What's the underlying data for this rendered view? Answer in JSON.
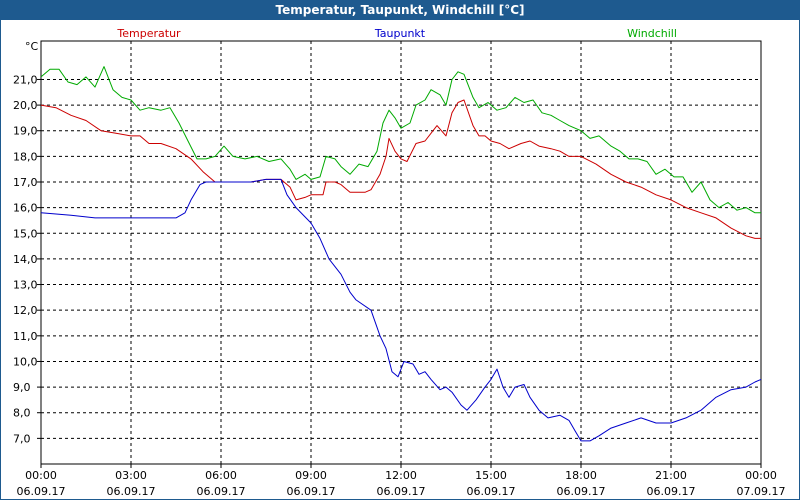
{
  "window": {
    "title": "Temperatur, Taupunkt, Windchill [°C]"
  },
  "colors": {
    "titlebar": "#1e5a8f",
    "grid": "#000000",
    "background": "#ffffff"
  },
  "chart_data": {
    "type": "line",
    "title": "Temperatur, Taupunkt, Windchill [°C]",
    "ylabel": "°C",
    "ylim": [
      6.0,
      22.5
    ],
    "yticks": [
      7.0,
      8.0,
      9.0,
      10.0,
      11.0,
      12.0,
      13.0,
      14.0,
      15.0,
      16.0,
      17.0,
      18.0,
      19.0,
      20.0,
      21.0
    ],
    "ytick_labels": [
      "7,0",
      "8,0",
      "9,0",
      "10,0",
      "11,0",
      "12,0",
      "13,0",
      "14,0",
      "15,0",
      "16,0",
      "17,0",
      "18,0",
      "19,0",
      "20,0",
      "21,0"
    ],
    "xlim": [
      0,
      24
    ],
    "xticks": [
      0,
      3,
      6,
      9,
      12,
      15,
      18,
      21,
      24
    ],
    "xtick_times": [
      "00:00",
      "03:00",
      "06:00",
      "09:00",
      "12:00",
      "15:00",
      "18:00",
      "21:00",
      "00:00"
    ],
    "xtick_dates": [
      "06.09.17",
      "06.09.17",
      "06.09.17",
      "06.09.17",
      "06.09.17",
      "06.09.17",
      "06.09.17",
      "06.09.17",
      "07.09.17"
    ],
    "grid": true,
    "series": [
      {
        "name": "Temperatur",
        "color": "#cc0000",
        "points": [
          [
            0,
            20.0
          ],
          [
            0.5,
            19.9
          ],
          [
            1.0,
            19.6
          ],
          [
            1.5,
            19.4
          ],
          [
            2.0,
            19.0
          ],
          [
            2.5,
            18.9
          ],
          [
            3.0,
            18.8
          ],
          [
            3.3,
            18.8
          ],
          [
            3.6,
            18.5
          ],
          [
            4.0,
            18.5
          ],
          [
            4.5,
            18.3
          ],
          [
            5.0,
            17.9
          ],
          [
            5.4,
            17.4
          ],
          [
            5.8,
            17.0
          ],
          [
            6.0,
            17.0
          ],
          [
            6.5,
            17.0
          ],
          [
            7.0,
            17.0
          ],
          [
            7.5,
            17.1
          ],
          [
            8.0,
            17.1
          ],
          [
            8.3,
            16.8
          ],
          [
            8.5,
            16.3
          ],
          [
            8.8,
            16.4
          ],
          [
            9.0,
            16.5
          ],
          [
            9.4,
            16.5
          ],
          [
            9.5,
            17.0
          ],
          [
            9.8,
            17.0
          ],
          [
            10.0,
            16.9
          ],
          [
            10.3,
            16.6
          ],
          [
            10.8,
            16.6
          ],
          [
            11.0,
            16.7
          ],
          [
            11.3,
            17.3
          ],
          [
            11.5,
            18.0
          ],
          [
            11.6,
            18.7
          ],
          [
            11.8,
            18.2
          ],
          [
            12.0,
            17.9
          ],
          [
            12.2,
            17.8
          ],
          [
            12.5,
            18.5
          ],
          [
            12.8,
            18.6
          ],
          [
            13.0,
            18.9
          ],
          [
            13.2,
            19.2
          ],
          [
            13.5,
            18.8
          ],
          [
            13.7,
            19.7
          ],
          [
            13.9,
            20.1
          ],
          [
            14.1,
            20.2
          ],
          [
            14.4,
            19.2
          ],
          [
            14.6,
            18.8
          ],
          [
            14.8,
            18.8
          ],
          [
            15.0,
            18.6
          ],
          [
            15.3,
            18.5
          ],
          [
            15.6,
            18.3
          ],
          [
            16.0,
            18.5
          ],
          [
            16.3,
            18.6
          ],
          [
            16.6,
            18.4
          ],
          [
            17.0,
            18.3
          ],
          [
            17.3,
            18.2
          ],
          [
            17.6,
            18.0
          ],
          [
            18.0,
            18.0
          ],
          [
            18.5,
            17.7
          ],
          [
            19.0,
            17.3
          ],
          [
            19.5,
            17.0
          ],
          [
            20.0,
            16.8
          ],
          [
            20.5,
            16.5
          ],
          [
            21.0,
            16.3
          ],
          [
            21.5,
            16.0
          ],
          [
            22.0,
            15.8
          ],
          [
            22.5,
            15.6
          ],
          [
            23.0,
            15.2
          ],
          [
            23.5,
            14.9
          ],
          [
            23.8,
            14.8
          ],
          [
            24.0,
            14.8
          ]
        ]
      },
      {
        "name": "Taupunkt",
        "color": "#0000cc",
        "points": [
          [
            0,
            15.8
          ],
          [
            1.0,
            15.7
          ],
          [
            1.8,
            15.6
          ],
          [
            2.5,
            15.6
          ],
          [
            3.0,
            15.6
          ],
          [
            4.0,
            15.6
          ],
          [
            4.5,
            15.6
          ],
          [
            4.8,
            15.8
          ],
          [
            5.0,
            16.3
          ],
          [
            5.3,
            16.9
          ],
          [
            5.5,
            17.0
          ],
          [
            6.0,
            17.0
          ],
          [
            7.0,
            17.0
          ],
          [
            7.5,
            17.1
          ],
          [
            8.0,
            17.1
          ],
          [
            8.2,
            16.5
          ],
          [
            8.5,
            16.0
          ],
          [
            9.0,
            15.4
          ],
          [
            9.3,
            14.8
          ],
          [
            9.6,
            14.0
          ],
          [
            10.0,
            13.4
          ],
          [
            10.3,
            12.7
          ],
          [
            10.5,
            12.4
          ],
          [
            11.0,
            12.0
          ],
          [
            11.3,
            11.0
          ],
          [
            11.5,
            10.5
          ],
          [
            11.7,
            9.6
          ],
          [
            11.9,
            9.4
          ],
          [
            12.1,
            10.0
          ],
          [
            12.4,
            9.9
          ],
          [
            12.6,
            9.5
          ],
          [
            12.8,
            9.6
          ],
          [
            13.0,
            9.3
          ],
          [
            13.3,
            8.9
          ],
          [
            13.5,
            9.0
          ],
          [
            13.7,
            8.8
          ],
          [
            14.0,
            8.3
          ],
          [
            14.2,
            8.1
          ],
          [
            14.5,
            8.5
          ],
          [
            14.8,
            9.0
          ],
          [
            15.0,
            9.3
          ],
          [
            15.2,
            9.7
          ],
          [
            15.4,
            9.0
          ],
          [
            15.6,
            8.6
          ],
          [
            15.8,
            9.0
          ],
          [
            16.1,
            9.1
          ],
          [
            16.3,
            8.6
          ],
          [
            16.6,
            8.1
          ],
          [
            16.9,
            7.8
          ],
          [
            17.3,
            7.9
          ],
          [
            17.6,
            7.7
          ],
          [
            17.8,
            7.3
          ],
          [
            18.0,
            6.9
          ],
          [
            18.3,
            6.9
          ],
          [
            18.6,
            7.1
          ],
          [
            19.0,
            7.4
          ],
          [
            19.5,
            7.6
          ],
          [
            20.0,
            7.8
          ],
          [
            20.5,
            7.6
          ],
          [
            21.0,
            7.6
          ],
          [
            21.5,
            7.8
          ],
          [
            22.0,
            8.1
          ],
          [
            22.5,
            8.6
          ],
          [
            23.0,
            8.9
          ],
          [
            23.5,
            9.0
          ],
          [
            23.8,
            9.2
          ],
          [
            24.0,
            9.3
          ]
        ]
      },
      {
        "name": "Windchill",
        "color": "#00aa00",
        "points": [
          [
            0,
            21.1
          ],
          [
            0.3,
            21.4
          ],
          [
            0.6,
            21.4
          ],
          [
            0.9,
            20.9
          ],
          [
            1.2,
            20.8
          ],
          [
            1.5,
            21.1
          ],
          [
            1.8,
            20.7
          ],
          [
            2.1,
            21.5
          ],
          [
            2.4,
            20.6
          ],
          [
            2.7,
            20.3
          ],
          [
            3.0,
            20.2
          ],
          [
            3.3,
            19.8
          ],
          [
            3.6,
            19.9
          ],
          [
            4.0,
            19.8
          ],
          [
            4.3,
            19.9
          ],
          [
            4.6,
            19.3
          ],
          [
            4.9,
            18.6
          ],
          [
            5.2,
            17.9
          ],
          [
            5.5,
            17.9
          ],
          [
            5.8,
            18.0
          ],
          [
            6.1,
            18.4
          ],
          [
            6.4,
            18.0
          ],
          [
            6.8,
            17.9
          ],
          [
            7.2,
            18.0
          ],
          [
            7.6,
            17.8
          ],
          [
            8.0,
            17.9
          ],
          [
            8.3,
            17.5
          ],
          [
            8.5,
            17.1
          ],
          [
            8.8,
            17.3
          ],
          [
            9.0,
            17.1
          ],
          [
            9.3,
            17.2
          ],
          [
            9.5,
            18.0
          ],
          [
            9.8,
            17.9
          ],
          [
            10.0,
            17.6
          ],
          [
            10.3,
            17.3
          ],
          [
            10.6,
            17.7
          ],
          [
            10.9,
            17.6
          ],
          [
            11.2,
            18.2
          ],
          [
            11.4,
            19.3
          ],
          [
            11.6,
            19.8
          ],
          [
            11.8,
            19.5
          ],
          [
            12.0,
            19.1
          ],
          [
            12.3,
            19.3
          ],
          [
            12.5,
            20.0
          ],
          [
            12.8,
            20.2
          ],
          [
            13.0,
            20.6
          ],
          [
            13.3,
            20.4
          ],
          [
            13.5,
            20.0
          ],
          [
            13.7,
            21.0
          ],
          [
            13.9,
            21.3
          ],
          [
            14.1,
            21.2
          ],
          [
            14.4,
            20.3
          ],
          [
            14.6,
            19.9
          ],
          [
            14.9,
            20.1
          ],
          [
            15.2,
            19.8
          ],
          [
            15.5,
            19.9
          ],
          [
            15.8,
            20.3
          ],
          [
            16.1,
            20.1
          ],
          [
            16.4,
            20.2
          ],
          [
            16.7,
            19.7
          ],
          [
            17.0,
            19.6
          ],
          [
            17.3,
            19.4
          ],
          [
            17.6,
            19.2
          ],
          [
            18.0,
            19.0
          ],
          [
            18.3,
            18.7
          ],
          [
            18.6,
            18.8
          ],
          [
            19.0,
            18.4
          ],
          [
            19.3,
            18.2
          ],
          [
            19.6,
            17.9
          ],
          [
            19.9,
            17.9
          ],
          [
            20.2,
            17.8
          ],
          [
            20.5,
            17.3
          ],
          [
            20.8,
            17.5
          ],
          [
            21.1,
            17.2
          ],
          [
            21.4,
            17.2
          ],
          [
            21.7,
            16.6
          ],
          [
            22.0,
            17.0
          ],
          [
            22.3,
            16.3
          ],
          [
            22.6,
            16.0
          ],
          [
            22.9,
            16.2
          ],
          [
            23.2,
            15.9
          ],
          [
            23.5,
            16.0
          ],
          [
            23.8,
            15.8
          ],
          [
            24.0,
            15.8
          ]
        ]
      }
    ]
  }
}
